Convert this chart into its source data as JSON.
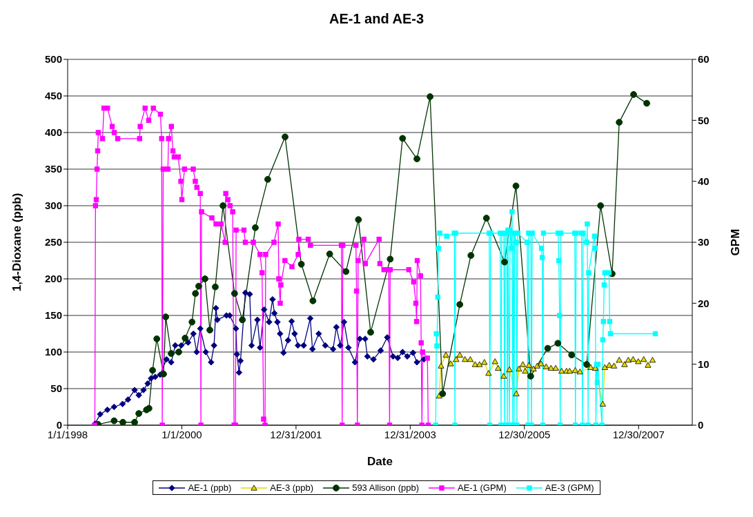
{
  "chart_data": {
    "type": "line",
    "title": "AE-1 and AE-3",
    "xlabel": "Date",
    "ylabel": "1,4-Dioxane (ppb)",
    "y2label": "GPM",
    "xlim": [
      "1998-01-01",
      "2008-12-07"
    ],
    "xticks": [
      {
        "value": "1998-01-01",
        "label": "1/1/1998"
      },
      {
        "value": "2000-01-01",
        "label": "1/1/2000"
      },
      {
        "value": "2001-12-31",
        "label": "12/31/2001"
      },
      {
        "value": "2003-12-31",
        "label": "12/31/2003"
      },
      {
        "value": "2005-12-30",
        "label": "12/30/2005"
      },
      {
        "value": "2007-12-30",
        "label": "12/30/2007"
      }
    ],
    "ylim": [
      0,
      500
    ],
    "yticks": [
      0,
      50,
      100,
      150,
      200,
      250,
      300,
      350,
      400,
      450,
      500
    ],
    "y2lim": [
      0,
      60
    ],
    "y2ticks": [
      0,
      10,
      20,
      30,
      40,
      50,
      60
    ],
    "grid": "y",
    "legend": "bottom",
    "line_style": "solid",
    "series": [
      {
        "name": "AE-1 (ppb)",
        "color": "#000080",
        "marker": "diamond",
        "x": [
          "1998-06-25",
          "1998-07-28",
          "1998-09-12",
          "1998-10-25",
          "1998-12-18",
          "1999-01-22",
          "1999-03-05",
          "1999-04-01",
          "1999-05-01",
          "1999-05-28",
          "1999-06-18",
          "1999-07-15",
          "1999-08-15",
          "1999-09-25",
          "1999-10-25",
          "1999-11-20",
          "1999-12-28",
          "2000-02-10",
          "2000-03-15",
          "2000-04-05",
          "2000-04-28",
          "2000-06-02",
          "2000-07-06",
          "2000-07-25",
          "2000-08-06",
          "2000-08-15",
          "2000-10-12",
          "2000-11-02",
          "2000-12-12",
          "2000-12-18",
          "2001-01-01",
          "2001-01-10",
          "2001-02-10",
          "2001-03-10",
          "2001-03-22",
          "2001-04-28",
          "2001-05-15",
          "2001-06-10",
          "2001-07-12",
          "2001-08-03",
          "2001-08-15",
          "2001-09-03",
          "2001-09-20",
          "2001-10-12",
          "2001-11-10",
          "2001-12-03",
          "2001-12-22",
          "2002-01-12",
          "2002-02-18",
          "2002-04-01",
          "2002-04-15",
          "2002-05-25",
          "2002-07-06",
          "2002-08-25",
          "2002-09-15",
          "2002-10-10",
          "2002-11-03",
          "2002-12-01",
          "2003-01-12",
          "2003-02-12",
          "2003-03-18",
          "2003-04-01",
          "2003-05-10",
          "2003-06-25",
          "2003-08-06",
          "2003-09-12",
          "2003-10-12",
          "2003-11-12",
          "2003-12-12",
          "2004-01-18",
          "2004-02-12",
          "2004-03-28"
        ],
        "values": [
          2,
          15,
          21,
          25,
          29,
          35,
          48,
          41,
          48,
          57,
          64,
          66,
          69,
          90,
          86,
          109,
          109,
          113,
          125,
          100,
          132,
          100,
          86,
          109,
          160,
          144,
          150,
          150,
          132,
          97,
          72,
          88,
          181,
          179,
          109,
          144,
          106,
          158,
          141,
          172,
          153,
          141,
          125,
          99,
          116,
          142,
          125,
          109,
          109,
          146,
          104,
          125,
          109,
          104,
          134,
          109,
          141,
          106,
          86,
          118,
          118,
          94,
          90,
          102,
          120,
          94,
          92,
          100,
          94,
          99,
          86,
          90
        ]
      },
      {
        "name": "AE-3 (ppb)",
        "color": "#e6d800",
        "marker": "triangle",
        "x": [
          "2004-07-03",
          "2004-07-15",
          "2004-08-15",
          "2004-09-15",
          "2004-10-20",
          "2004-11-12",
          "2004-12-15",
          "2005-01-18",
          "2005-02-18",
          "2005-03-18",
          "2005-04-18",
          "2005-05-15",
          "2005-06-25",
          "2005-07-15",
          "2005-08-20",
          "2005-09-25",
          "2005-11-08",
          "2005-11-25",
          "2005-12-20",
          "2006-01-04",
          "2006-01-28",
          "2006-02-26",
          "2006-03-22",
          "2006-04-15",
          "2006-05-18",
          "2006-06-18",
          "2006-07-18",
          "2006-08-25",
          "2006-09-25",
          "2006-10-15",
          "2006-11-20",
          "2006-12-20",
          "2007-02-27",
          "2007-03-28",
          "2007-05-15",
          "2007-05-28",
          "2007-06-25",
          "2007-07-25",
          "2007-08-28",
          "2007-10-01",
          "2007-10-25",
          "2007-11-25",
          "2007-12-28",
          "2008-02-01",
          "2008-02-28",
          "2008-03-28"
        ],
        "values": [
          40,
          81,
          96,
          84,
          90,
          96,
          90,
          90,
          83,
          83,
          86,
          71,
          87,
          78,
          67,
          76,
          43,
          77,
          83,
          74,
          82,
          77,
          81,
          84,
          80,
          78,
          78,
          74,
          74,
          74,
          75,
          73,
          79,
          78,
          29,
          79,
          82,
          81,
          89,
          83,
          89,
          90,
          87,
          90,
          82,
          89
        ]
      },
      {
        "name": "593 Allison (ppb)",
        "color": "#003300",
        "marker": "circle",
        "x": [
          "1998-07-15",
          "1998-10-25",
          "1998-12-20",
          "1999-03-05",
          "1999-04-01",
          "1999-05-20",
          "1999-06-05",
          "1999-06-28",
          "1999-07-25",
          "1999-09-06",
          "1999-09-20",
          "1999-10-25",
          "1999-12-12",
          "2000-01-22",
          "2000-03-06",
          "2000-03-28",
          "2000-04-18",
          "2000-05-28",
          "2000-06-28",
          "2000-08-02",
          "2000-09-20",
          "2000-12-03",
          "2001-01-22",
          "2001-04-15",
          "2001-07-03",
          "2001-10-22",
          "2002-02-03",
          "2002-04-18",
          "2002-08-03",
          "2002-11-15",
          "2003-02-03",
          "2003-04-22",
          "2003-08-25",
          "2003-11-12",
          "2004-02-12",
          "2004-05-06",
          "2004-07-25",
          "2004-11-12",
          "2005-01-22",
          "2005-05-01",
          "2005-08-25",
          "2005-11-06",
          "2006-02-08",
          "2006-05-28",
          "2006-08-01",
          "2006-10-28",
          "2007-02-01",
          "2007-05-01",
          "2007-07-14",
          "2007-08-28",
          "2007-11-28",
          "2008-02-20"
        ],
        "values": [
          1,
          6,
          4,
          4,
          16,
          21,
          23,
          75,
          118,
          70,
          148,
          98,
          100,
          119,
          141,
          180,
          190,
          200,
          130,
          189,
          300,
          180,
          144,
          270,
          336,
          394,
          220,
          170,
          234,
          210,
          281,
          127,
          227,
          392,
          364,
          449,
          43,
          165,
          232,
          283,
          223,
          327,
          67,
          105,
          112,
          96,
          83,
          300,
          207,
          414,
          452,
          440
        ]
      },
      {
        "name": "AE-1 (GPM)",
        "color": "#ff00ff",
        "marker": "square",
        "axis": "y2",
        "x": [
          "1998-06-24",
          "1998-06-28",
          "1998-07-03",
          "1998-07-08",
          "1998-07-12",
          "1998-07-16",
          "1998-08-12",
          "1998-08-21",
          "1998-09-13",
          "1998-10-13",
          "1998-10-26",
          "1998-11-17",
          "1999-04-06",
          "1999-04-10",
          "1999-05-11",
          "1999-06-03",
          "1999-07-03",
          "1999-08-17",
          "1999-08-25",
          "1999-08-29",
          "1999-09-04",
          "1999-10-04",
          "1999-10-08",
          "1999-10-26",
          "1999-11-05",
          "1999-11-13",
          "1999-12-09",
          "1999-12-26",
          "2000-01-01",
          "2000-01-18",
          "2000-03-14",
          "2000-03-27",
          "2000-04-06",
          "2000-04-28",
          "2000-05-02",
          "2000-05-06",
          "2000-07-11",
          "2000-08-07",
          "2000-09-08",
          "2000-10-04",
          "2000-10-08",
          "2000-10-21",
          "2000-11-04",
          "2000-11-21",
          "2000-11-30",
          "2000-12-09",
          "2000-12-13",
          "2001-02-01",
          "2001-02-10",
          "2001-04-02",
          "2001-05-15",
          "2001-05-28",
          "2001-06-07",
          "2001-06-16",
          "2001-06-20",
          "2001-08-12",
          "2001-09-08",
          "2001-09-12",
          "2001-09-21",
          "2001-09-25",
          "2001-10-21",
          "2001-12-05",
          "2002-01-14",
          "2002-01-18",
          "2002-03-19",
          "2002-04-02",
          "2002-10-17",
          "2002-10-22",
          "2002-10-26",
          "2003-01-18",
          "2003-01-22",
          "2003-01-27",
          "2003-02-01",
          "2003-03-10",
          "2003-03-19",
          "2003-06-15",
          "2003-06-20",
          "2003-07-16",
          "2003-08-16",
          "2003-08-21",
          "2003-08-25",
          "2003-12-22",
          "2004-01-22",
          "2004-02-05",
          "2004-02-10",
          "2004-02-14",
          "2004-03-06",
          "2004-03-10",
          "2004-03-15",
          "2004-03-19",
          "2004-04-19",
          "2004-04-24"
        ],
        "values": [
          0,
          36,
          37,
          42,
          45,
          48,
          47,
          52,
          52,
          49,
          48,
          47,
          47,
          49,
          52,
          50,
          52,
          51,
          47,
          0,
          42,
          42,
          47,
          49,
          45,
          44,
          44,
          40,
          37,
          42,
          42,
          40,
          39,
          38,
          0,
          35,
          34,
          33,
          33,
          30,
          38,
          37,
          36,
          35,
          0,
          0,
          32,
          32,
          30,
          30,
          28,
          25,
          1,
          0,
          28,
          30,
          33,
          24,
          20,
          23,
          27,
          26,
          28,
          30.5,
          30.5,
          29.5,
          29.5,
          0,
          29.5,
          29.5,
          22,
          0,
          27,
          30.5,
          26.5,
          30.5,
          26.5,
          25.5,
          25.5,
          0,
          25.5,
          25.5,
          23.5,
          20,
          17,
          27,
          24.5,
          13.5,
          0,
          12,
          11,
          0
        ]
      },
      {
        "name": "AE-3 (GPM)",
        "color": "#00ffff",
        "marker": "square",
        "axis": "y2",
        "x": [
          "2004-06-11",
          "2004-06-15",
          "2004-06-19",
          "2004-06-24",
          "2004-06-28",
          "2004-07-07",
          "2004-08-20",
          "2004-10-08",
          "2004-10-12",
          "2004-10-16",
          "2005-05-19",
          "2005-05-23",
          "2005-05-28",
          "2005-07-28",
          "2005-08-03",
          "2005-08-07",
          "2005-08-20",
          "2005-08-25",
          "2005-08-29",
          "2005-09-08",
          "2005-09-12",
          "2005-09-16",
          "2005-09-25",
          "2005-09-29",
          "2005-10-08",
          "2005-10-12",
          "2005-10-16",
          "2005-10-21",
          "2005-10-25",
          "2005-10-29",
          "2005-11-08",
          "2005-11-12",
          "2005-11-17",
          "2006-01-17",
          "2006-01-22",
          "2006-01-26",
          "2006-02-09",
          "2006-02-13",
          "2006-02-18",
          "2006-04-18",
          "2006-04-23",
          "2006-04-27",
          "2006-05-01",
          "2006-08-03",
          "2006-08-07",
          "2006-08-12",
          "2006-08-16",
          "2006-08-20",
          "2006-11-17",
          "2006-11-21",
          "2006-11-26",
          "2006-12-30",
          "2007-01-05",
          "2007-01-09",
          "2007-02-01",
          "2007-02-05",
          "2007-02-10",
          "2007-02-14",
          "2007-03-23",
          "2007-03-27",
          "2007-04-01",
          "2007-04-06",
          "2007-04-10",
          "2007-04-14",
          "2007-05-10",
          "2007-05-15",
          "2007-05-19",
          "2007-05-24",
          "2007-05-28",
          "2007-06-24",
          "2007-06-28",
          "2007-07-03",
          "2008-04-15"
        ],
        "values": [
          0,
          15,
          13,
          21,
          29,
          31.5,
          31,
          31.5,
          0,
          31.5,
          31.5,
          0,
          31.5,
          31.5,
          0,
          31.5,
          31.5,
          0,
          31.5,
          31.5,
          0,
          32,
          0,
          32,
          29,
          35,
          0,
          31.5,
          0,
          31.5,
          30,
          0,
          31.5,
          30,
          0,
          31.5,
          31.5,
          0,
          31.5,
          29,
          27.5,
          0,
          31.5,
          31.5,
          27,
          18,
          0,
          31.5,
          31.5,
          0,
          31.5,
          31.5,
          0,
          31.5,
          30,
          33,
          0,
          25,
          31,
          29,
          0,
          10,
          7,
          10,
          0,
          14,
          17,
          23,
          25,
          25,
          17,
          15,
          15
        ]
      }
    ]
  }
}
